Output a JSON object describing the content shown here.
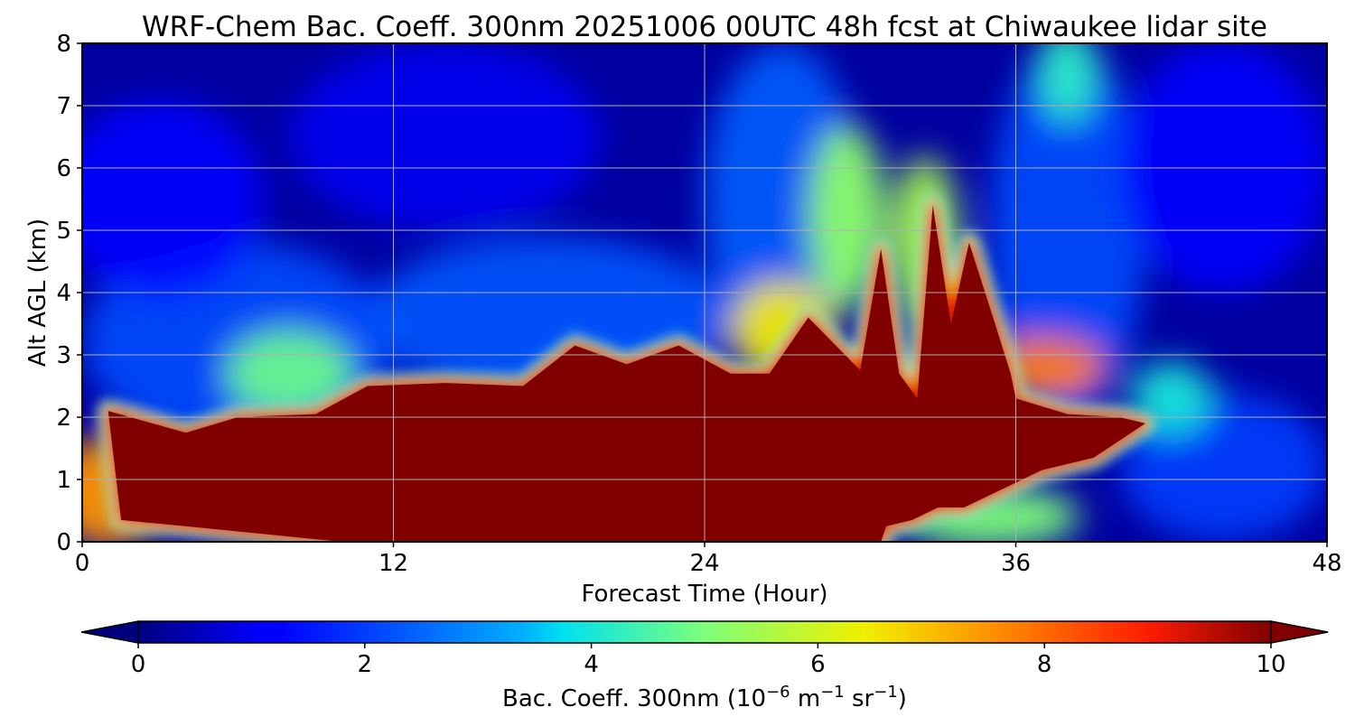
{
  "chart_data": {
    "type": "heatmap",
    "title": "WRF-Chem Bac. Coeff. 300nm  20251006 00UTC 48h fcst at Chiwaukee lidar site",
    "xlabel": "Forecast Time (Hour)",
    "ylabel": "Alt AGL (km)",
    "xlim": [
      0,
      48
    ],
    "ylim": [
      0,
      8
    ],
    "x_ticks": [
      0,
      12,
      24,
      36,
      48
    ],
    "y_ticks": [
      0,
      1,
      2,
      3,
      4,
      5,
      6,
      7,
      8
    ],
    "grid": true,
    "colorbar": {
      "label_prefix": "Bac. Coeff. 300nm  (10",
      "label_exp1": "−6",
      "label_mid": " m",
      "label_exp2": "−1",
      "label_mid2": " sr",
      "label_exp3": "−1",
      "label_suffix": ")",
      "min": 0,
      "max": 10,
      "ticks": [
        0,
        2,
        4,
        6,
        8,
        10
      ],
      "extend": "both",
      "colormap": "jet"
    },
    "saturated_region": {
      "description_value": 10,
      "upper_boundary": {
        "hour": [
          1,
          4,
          6,
          9,
          11,
          14,
          17,
          19,
          21,
          23,
          25,
          26.5,
          28,
          30,
          30.8,
          31.5,
          32.2,
          32.8,
          33.5,
          34.2,
          35.2,
          35.8,
          36,
          38,
          40,
          41
        ],
        "alt_km": [
          2.1,
          1.75,
          2.0,
          2.05,
          2.5,
          2.55,
          2.5,
          3.15,
          2.85,
          3.15,
          2.7,
          2.7,
          3.6,
          2.75,
          4.7,
          2.7,
          2.3,
          5.4,
          3.5,
          4.8,
          3.5,
          2.7,
          2.3,
          2.05,
          2.0,
          1.9
        ]
      },
      "lower_boundary": {
        "hour": [
          41,
          39,
          37,
          36,
          34,
          33,
          32,
          31,
          30.8,
          20,
          10,
          4,
          1.5
        ],
        "alt_km": [
          1.9,
          1.35,
          1.15,
          0.95,
          0.55,
          0.55,
          0.35,
          0.25,
          0.0,
          0.0,
          0.0,
          0.25,
          0.35
        ]
      }
    },
    "background_field": [
      {
        "hour": 1,
        "alt_km": 0.8,
        "value": 7.5,
        "radius_h": 2.2,
        "radius_km": 0.9
      },
      {
        "hour": 8,
        "alt_km": 2.7,
        "value": 4.8,
        "radius_h": 2.5,
        "radius_km": 0.7
      },
      {
        "hour": 27,
        "alt_km": 3.4,
        "value": 6.5,
        "radius_h": 2.0,
        "radius_km": 0.8
      },
      {
        "hour": 29.5,
        "alt_km": 5.2,
        "value": 5.2,
        "radius_h": 1.5,
        "radius_km": 1.5
      },
      {
        "hour": 32.5,
        "alt_km": 4.8,
        "value": 5.5,
        "radius_h": 1.3,
        "radius_km": 1.4
      },
      {
        "hour": 38,
        "alt_km": 7.5,
        "value": 4.2,
        "radius_h": 1.2,
        "radius_km": 0.8
      },
      {
        "hour": 37,
        "alt_km": 2.8,
        "value": 7.8,
        "radius_h": 2.5,
        "radius_km": 0.5
      },
      {
        "hour": 42,
        "alt_km": 2.3,
        "value": 4.0,
        "radius_h": 1.6,
        "radius_km": 0.6
      },
      {
        "hour": 35,
        "alt_km": 0.4,
        "value": 5.0,
        "radius_h": 3.5,
        "radius_km": 0.5
      }
    ]
  }
}
